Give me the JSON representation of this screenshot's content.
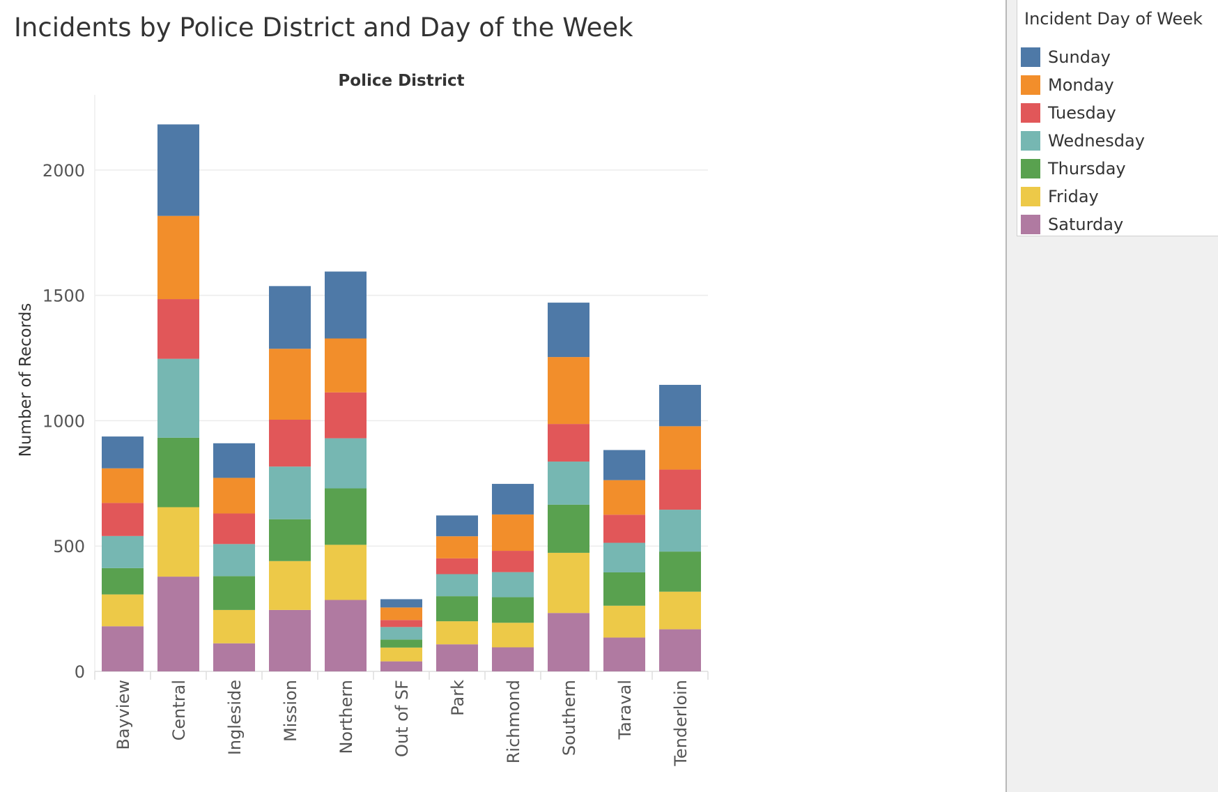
{
  "title": "Incidents by Police District and Day of the Week",
  "chart_data": {
    "type": "bar",
    "stacked": true,
    "title": "Incidents by Police District and Day of the Week",
    "column_header": "Police District",
    "xlabel": "",
    "ylabel": "Number of Records",
    "ylim": [
      0,
      2300
    ],
    "yticks": [
      0,
      500,
      1000,
      1500,
      2000
    ],
    "grid": true,
    "legend_position": "right",
    "legend_title": "Incident Day of Week",
    "categories": [
      "Bayview",
      "Central",
      "Ingleside",
      "Mission",
      "Northern",
      "Out of SF",
      "Park",
      "Richmond",
      "Southern",
      "Taraval",
      "Tenderloin"
    ],
    "series": [
      {
        "name": "Saturday",
        "color": "#b07aa1",
        "values": [
          180,
          378,
          112,
          245,
          285,
          40,
          108,
          96,
          233,
          135,
          168
        ]
      },
      {
        "name": "Friday",
        "color": "#edc948",
        "values": [
          127,
          277,
          133,
          195,
          220,
          55,
          92,
          98,
          240,
          127,
          150
        ]
      },
      {
        "name": "Thursday",
        "color": "#59a14f",
        "values": [
          105,
          277,
          135,
          167,
          225,
          32,
          100,
          102,
          192,
          133,
          160
        ]
      },
      {
        "name": "Wednesday",
        "color": "#76b7b2",
        "values": [
          128,
          315,
          128,
          210,
          200,
          50,
          88,
          100,
          172,
          118,
          167
        ]
      },
      {
        "name": "Tuesday",
        "color": "#e15759",
        "values": [
          132,
          238,
          122,
          187,
          183,
          28,
          63,
          85,
          150,
          112,
          160
        ]
      },
      {
        "name": "Monday",
        "color": "#f28e2b",
        "values": [
          138,
          332,
          142,
          283,
          215,
          50,
          88,
          145,
          267,
          138,
          173
        ]
      },
      {
        "name": "Sunday",
        "color": "#4e79a7",
        "values": [
          127,
          365,
          138,
          250,
          267,
          33,
          83,
          122,
          217,
          120,
          165
        ]
      }
    ]
  }
}
